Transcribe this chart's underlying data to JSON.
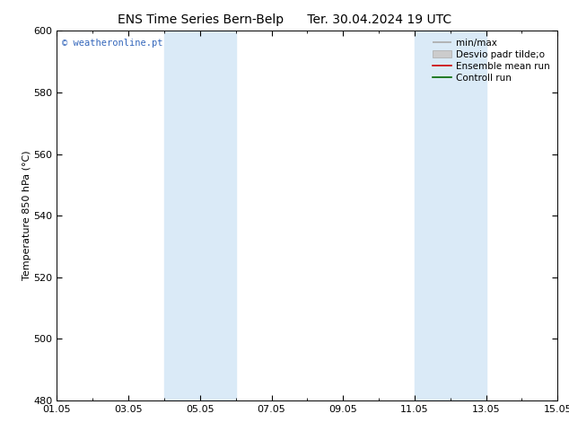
{
  "title_left": "ENS Time Series Bern-Belp",
  "title_right": "Ter. 30.04.2024 19 UTC",
  "ylabel": "Temperature 850 hPa (°C)",
  "ylim": [
    480,
    600
  ],
  "yticks": [
    480,
    500,
    520,
    540,
    560,
    580,
    600
  ],
  "xlim_start": 0,
  "xlim_end": 14,
  "xtick_labels": [
    "01.05",
    "03.05",
    "05.05",
    "07.05",
    "09.05",
    "11.05",
    "13.05",
    "15.05"
  ],
  "xtick_positions": [
    0,
    2,
    4,
    6,
    8,
    10,
    12,
    14
  ],
  "shaded_bands": [
    {
      "x_start": 3.0,
      "x_end": 5.0
    },
    {
      "x_start": 10.0,
      "x_end": 12.0
    }
  ],
  "shade_color": "#daeaf7",
  "legend_labels": [
    "min/max",
    "Desvio padr tilde;o",
    "Ensemble mean run",
    "Controll run"
  ],
  "watermark": "© weatheronline.pt",
  "watermark_color": "#3366bb",
  "background_color": "#ffffff",
  "plot_bg_color": "#ffffff",
  "title_fontsize": 10,
  "tick_fontsize": 8,
  "ylabel_fontsize": 8,
  "legend_fontsize": 7.5
}
